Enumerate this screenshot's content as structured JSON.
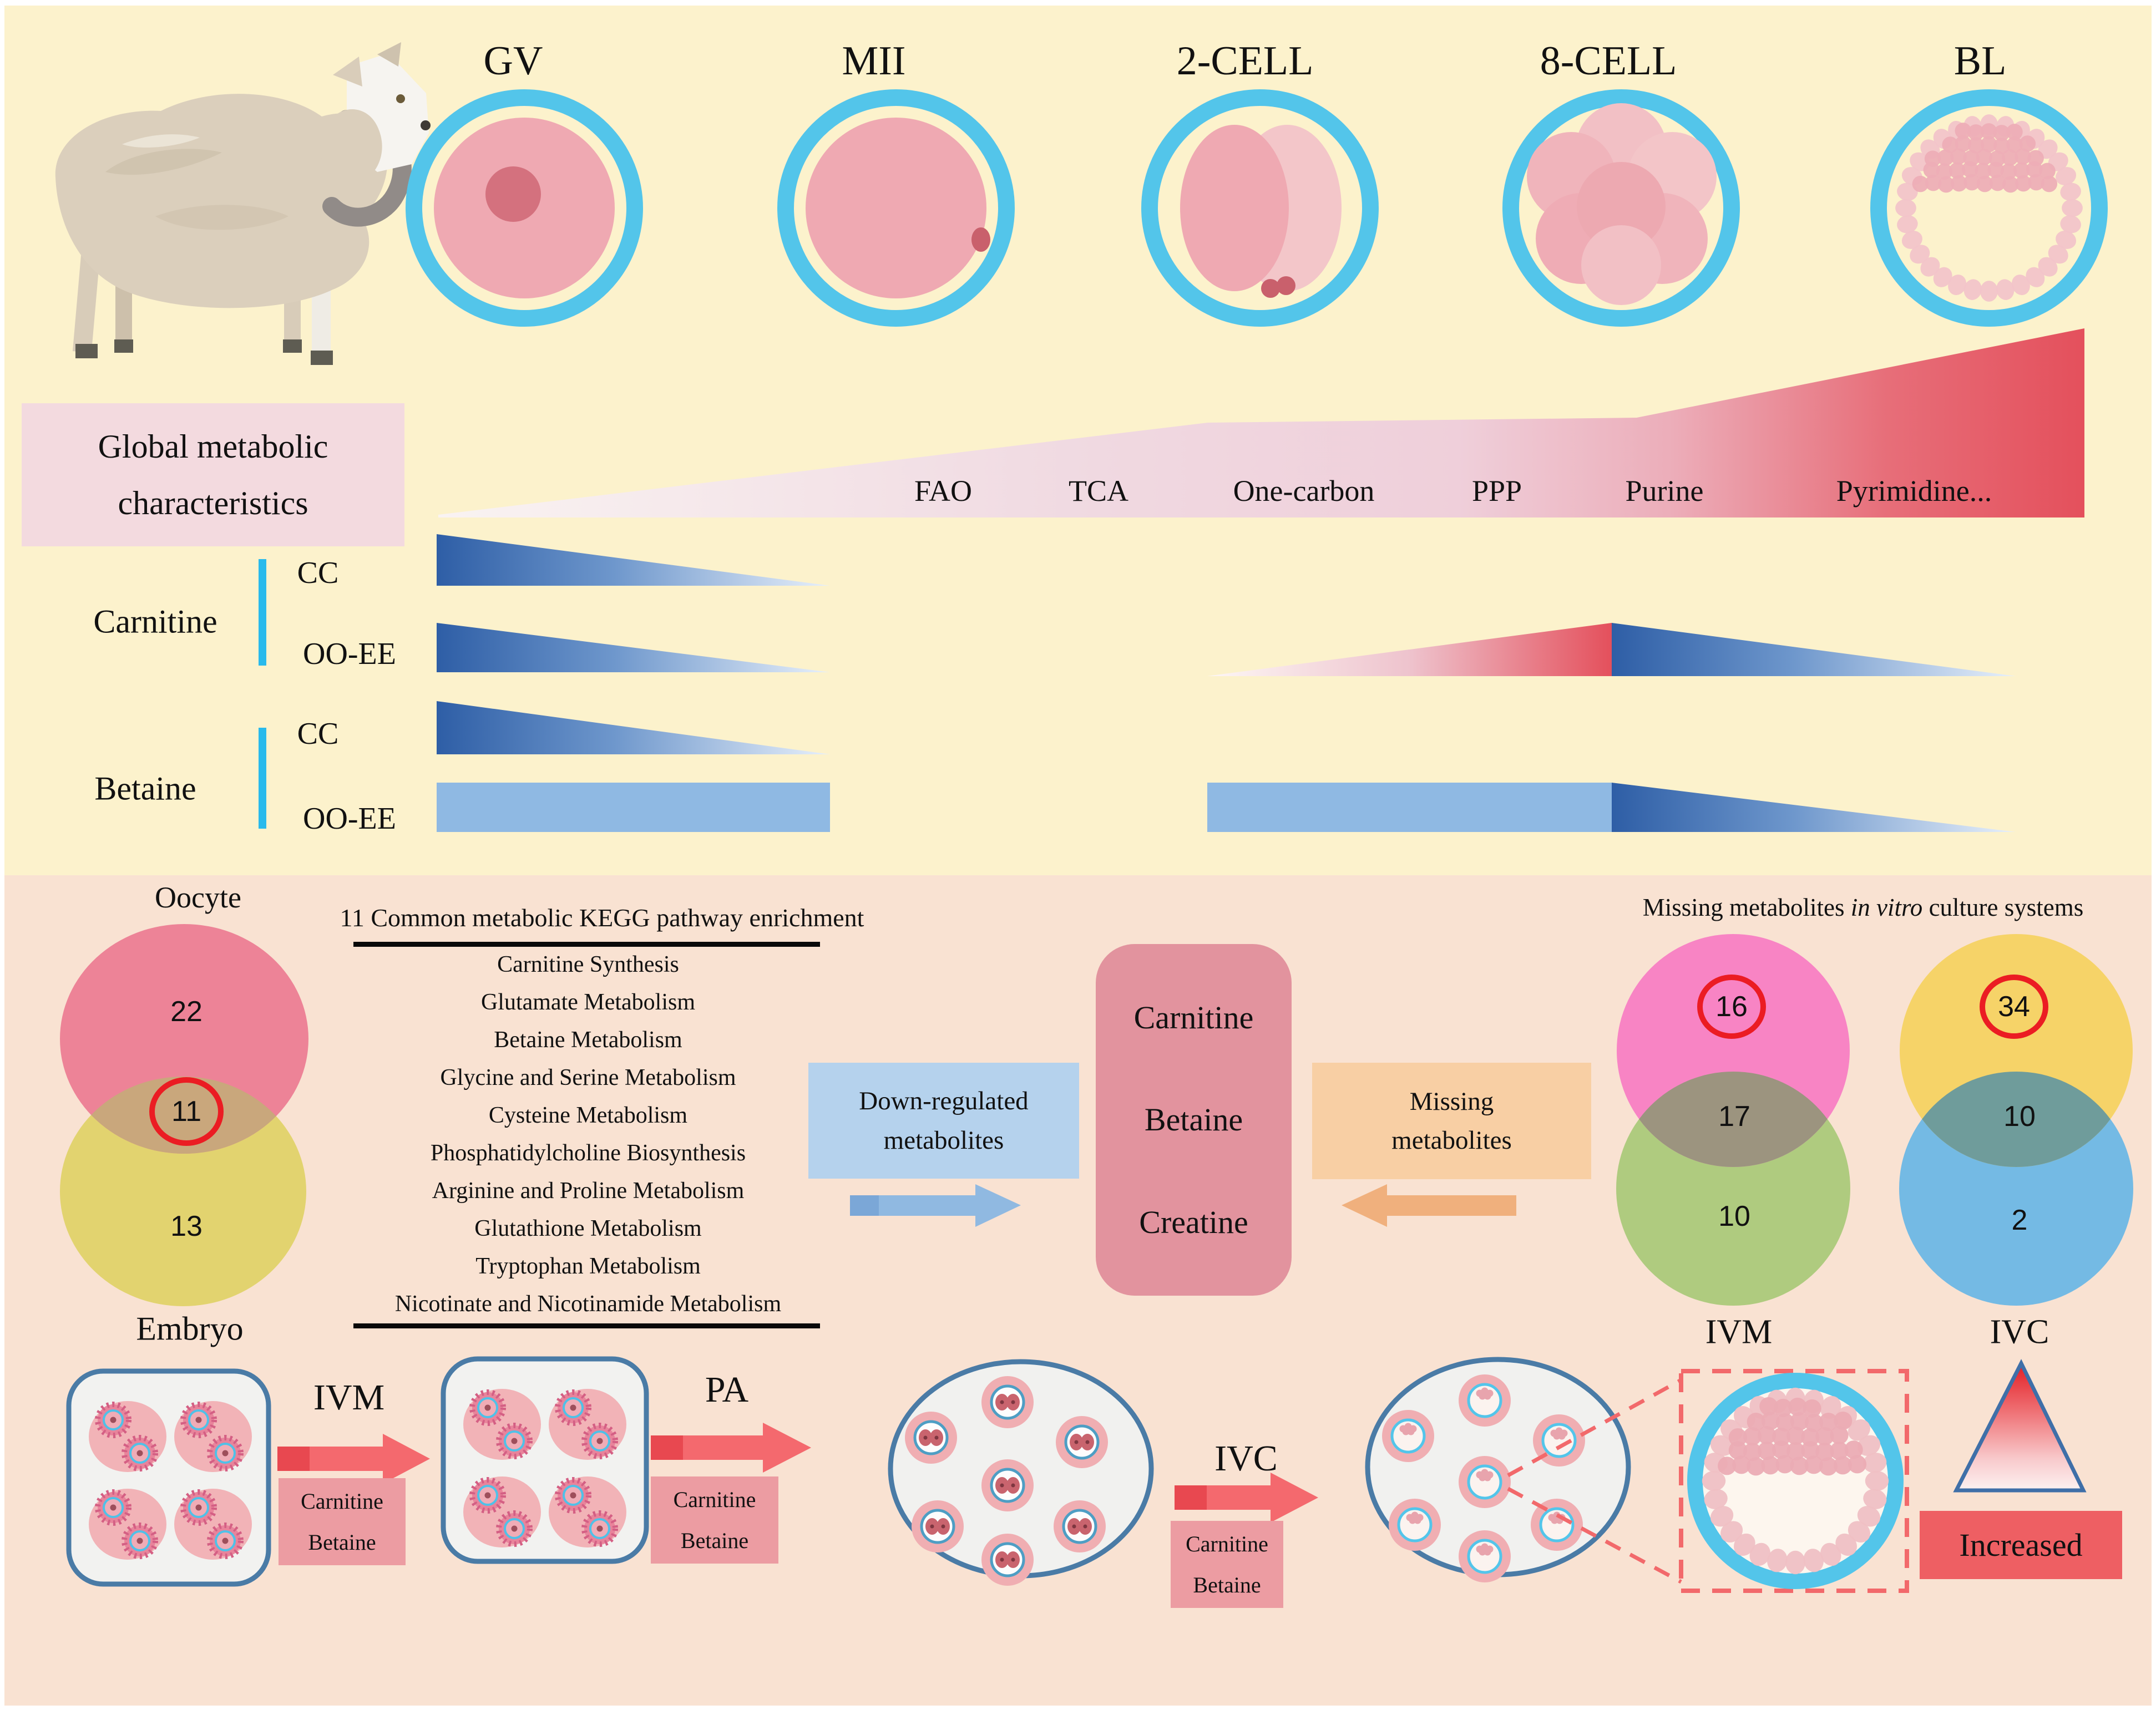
{
  "colors": {
    "top_background": "#FCF2CC",
    "bottom_background": "#F9E2D2",
    "zona_ring_blue": "#53C5EA",
    "oocyte_pink": "#EFA9B2",
    "wedge_red": "#E4505C",
    "gradient_blue_dark": "#2E5EA6",
    "gradient_blue_light": "#E8F0FA",
    "betaine_bar_blue": "#8FB9E3",
    "cyan_bracket": "#29BAEC",
    "global_box_pink": "#F3DADF",
    "venn_oocyte_pink": "#ED8397",
    "venn_embryo_yellow": "#E2D36F",
    "venn_left_overlap": "#C9A77C",
    "down_regulated_blue": "#B5D2ED",
    "metabolites_box_pink": "#E2939E",
    "missing_box_orange": "#F8CFA4",
    "ivm_pink": "#F884C4",
    "ivm_green": "#AFCB7F",
    "ivm_overlap": "#9C947F",
    "ivc_yellow": "#F6D368",
    "ivc_blue": "#74BAE4",
    "ivc_overlap": "#6F9C9B",
    "red_annotation_circle": "#EB1C23",
    "workflow_arrow_red": "#F4696E",
    "supplement_box_pink": "#EC9CA2",
    "increased_red": "#EE5F63",
    "dish_border_blue": "#4A7BA6"
  },
  "stages": [
    "GV",
    "MII",
    "2-CELL",
    "8-CELL",
    "BL"
  ],
  "global_box": {
    "line1": "Global metabolic",
    "line2": "characteristics"
  },
  "pathways": [
    "FAO",
    "TCA",
    "One-carbon",
    "PPP",
    "Purine",
    "Pyrimidine..."
  ],
  "metabolite_rows": {
    "carnitine": {
      "label": "Carnitine",
      "top": "CC",
      "bottom": "OO-EE"
    },
    "betaine": {
      "label": "Betaine",
      "top": "CC",
      "bottom": "OO-EE"
    }
  },
  "venn_left": {
    "top_label": "Oocyte",
    "top_count": "22",
    "overlap_count": "11",
    "bottom_count": "13",
    "bottom_label": "Embryo"
  },
  "kegg": {
    "title": "11 Common metabolic KEGG pathway enrichment",
    "items": [
      "Carnitine Synthesis",
      "Glutamate Metabolism",
      "Betaine Metabolism",
      "Glycine and Serine Metabolism",
      "Cysteine Metabolism",
      "Phosphatidylcholine Biosynthesis",
      "Arginine and Proline Metabolism",
      "Glutathione Metabolism",
      "Tryptophan Metabolism",
      "Nicotinate and Nicotinamide Metabolism"
    ]
  },
  "down_regulated": {
    "line1": "Down-regulated",
    "line2": "metabolites"
  },
  "metabolites_box": [
    "Carnitine",
    "Betaine",
    "Creatine"
  ],
  "missing": {
    "line1": "Missing",
    "line2": "metabolites"
  },
  "right_title": {
    "prefix": "Missing metabolites ",
    "italic": "in vitro",
    "suffix": " culture systems"
  },
  "venn_ivm": {
    "top_count": "16",
    "overlap_count": "17",
    "bottom_count": "10",
    "label": "IVM"
  },
  "venn_ivc": {
    "top_count": "34",
    "overlap_count": "10",
    "bottom_count": "2",
    "label": "IVC"
  },
  "workflow": {
    "step1_label": "IVM",
    "step2_label": "PA",
    "step3_label": "IVC",
    "supplement_line1": "Carnitine",
    "supplement_line2": "Betaine",
    "increased_label": "Increased"
  }
}
